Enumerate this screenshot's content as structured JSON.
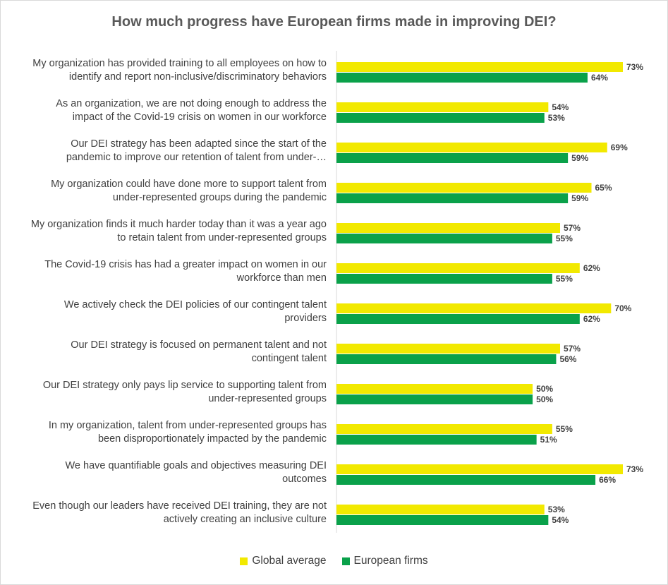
{
  "title": "How much progress have European firms made in improving DEI?",
  "colors": {
    "global": "#f2e900",
    "european": "#0aa14a",
    "axis": "#d9d9d9",
    "label": "#404040"
  },
  "legend": {
    "global_label": "Global average",
    "european_label": "European firms"
  },
  "chart_data": {
    "type": "bar",
    "orientation": "horizontal",
    "xlim": [
      0,
      80
    ],
    "grid": false,
    "legend_position": "bottom",
    "categories": [
      [
        "My organization has provided training to all employees on how to",
        "identify and report non-inclusive/discriminatory behaviors"
      ],
      [
        "As an organization, we are not doing enough to address the",
        "impact of the Covid-19 crisis on women in our workforce"
      ],
      [
        "Our DEI strategy has been adapted since the start of the",
        "pandemic to improve our retention of talent from under-…"
      ],
      [
        "My organization could have done more to support talent from",
        "under-represented groups during the pandemic"
      ],
      [
        "My organization finds it much harder today than it was a year ago",
        "to retain talent from under-represented groups"
      ],
      [
        "The Covid-19 crisis has had a greater impact on women in our",
        "workforce than men"
      ],
      [
        "We actively check the DEI policies of our contingent talent",
        "providers"
      ],
      [
        "Our DEI strategy is focused on permanent talent and not",
        "contingent talent"
      ],
      [
        "Our DEI strategy only pays lip service to supporting talent from",
        "under-represented groups"
      ],
      [
        "In my organization, talent from under-represented groups has",
        "been disproportionately impacted by the pandemic"
      ],
      [
        "We have quantifiable goals and objectives measuring DEI",
        "outcomes"
      ],
      [
        "Even though our leaders have received DEI training, they are not",
        "actively creating an inclusive culture"
      ]
    ],
    "series": [
      {
        "name": "Global average",
        "values": [
          73,
          54,
          69,
          65,
          57,
          62,
          70,
          57,
          50,
          55,
          73,
          53
        ]
      },
      {
        "name": "European firms",
        "values": [
          64,
          53,
          59,
          59,
          55,
          55,
          62,
          56,
          50,
          51,
          66,
          54
        ]
      }
    ],
    "value_suffix": "%"
  }
}
